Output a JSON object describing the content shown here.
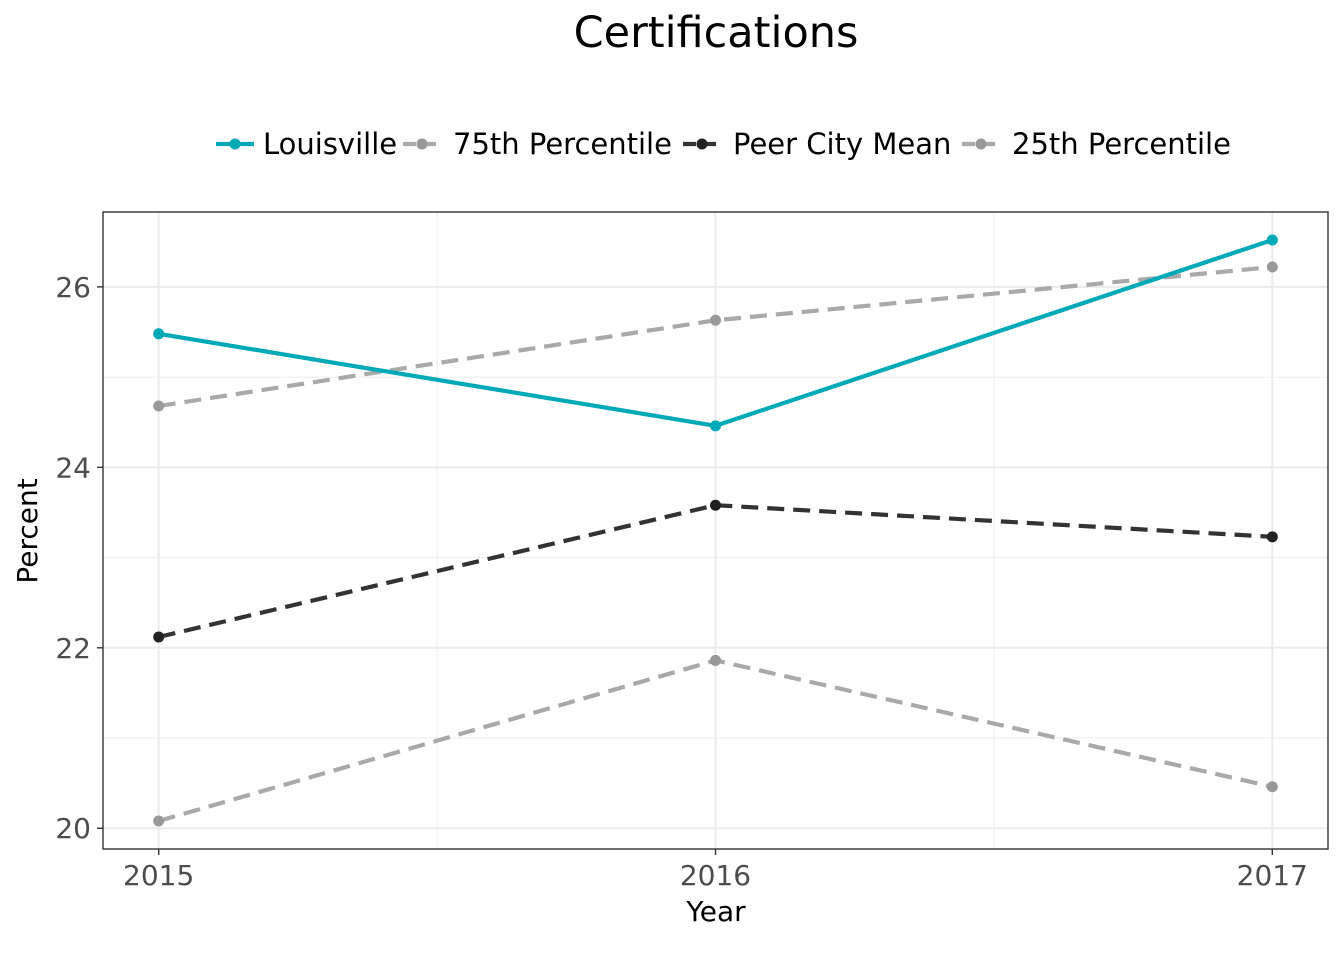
{
  "chart_data": {
    "type": "line",
    "title": "Certifications",
    "xlabel": "Year",
    "ylabel": "Percent",
    "x": [
      2015,
      2016,
      2017
    ],
    "x_tick_labels": [
      "2015",
      "2016",
      "2017"
    ],
    "y_ticks": [
      20,
      22,
      24,
      26
    ],
    "y_tick_labels": [
      "20",
      "22",
      "24",
      "26"
    ],
    "xlim": [
      2014.9,
      2017.1
    ],
    "ylim": [
      19.77,
      26.83
    ],
    "grid": true,
    "legend_position": "top",
    "series": [
      {
        "name": "Louisville",
        "values": [
          25.48,
          24.46,
          26.52
        ],
        "color": "#00a9b7",
        "dashed": false
      },
      {
        "name": "75th Percentile",
        "values": [
          24.68,
          25.63,
          26.22
        ],
        "color": "#a9a9a9",
        "dashed": true
      },
      {
        "name": "Peer City Mean",
        "values": [
          22.12,
          23.58,
          23.23
        ],
        "color": "#333333",
        "dashed": true
      },
      {
        "name": "25th Percentile",
        "values": [
          20.08,
          21.86,
          20.46
        ],
        "color": "#a9a9a9",
        "dashed": true
      }
    ]
  }
}
